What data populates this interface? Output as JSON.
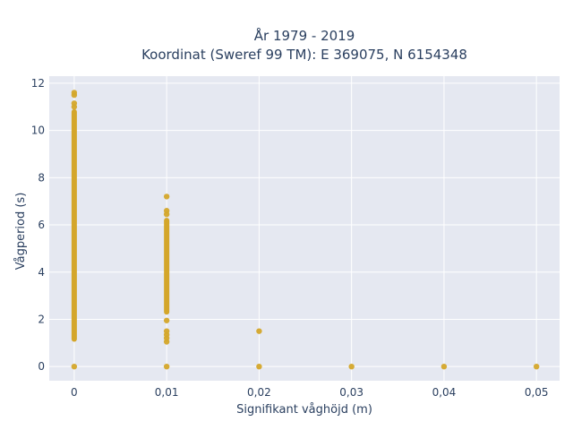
{
  "chart_data": {
    "type": "scatter",
    "title_lines": [
      "År 1979 - 2019",
      "Koordinat (Sweref 99 TM): E 369075, N 6154348"
    ],
    "xlabel": "Signifikant våghöjd (m)",
    "ylabel": "Vågperiod (s)",
    "xlim": [
      -0.0027,
      0.0525
    ],
    "ylim": [
      -0.6,
      12.3
    ],
    "x_ticks": [
      0,
      0.01,
      0.02,
      0.03,
      0.04,
      0.05
    ],
    "x_tick_labels": [
      "0",
      "0,01",
      "0,02",
      "0,03",
      "0,04",
      "0,05"
    ],
    "y_ticks": [
      0,
      2,
      4,
      6,
      8,
      10,
      12
    ],
    "y_tick_labels": [
      "0",
      "2",
      "4",
      "6",
      "8",
      "10",
      "12"
    ],
    "grid": true,
    "background": "#e5e8f1",
    "marker_color": "#d4a62a",
    "series": [
      {
        "x": 0,
        "y_min": 1.05,
        "y_max": 10.9,
        "points": [
          0,
          11.0,
          11.15,
          11.5,
          11.6
        ]
      },
      {
        "x": 0.01,
        "y_min": 2.2,
        "y_max": 6.3,
        "points": [
          0,
          1.05,
          1.2,
          1.35,
          1.5,
          1.95,
          6.45,
          6.6,
          7.2
        ]
      },
      {
        "x": 0.02,
        "points": [
          0,
          1.5
        ]
      },
      {
        "x": 0.03,
        "points": [
          0
        ]
      },
      {
        "x": 0.04,
        "points": [
          0
        ]
      },
      {
        "x": 0.05,
        "points": [
          0
        ]
      }
    ]
  }
}
